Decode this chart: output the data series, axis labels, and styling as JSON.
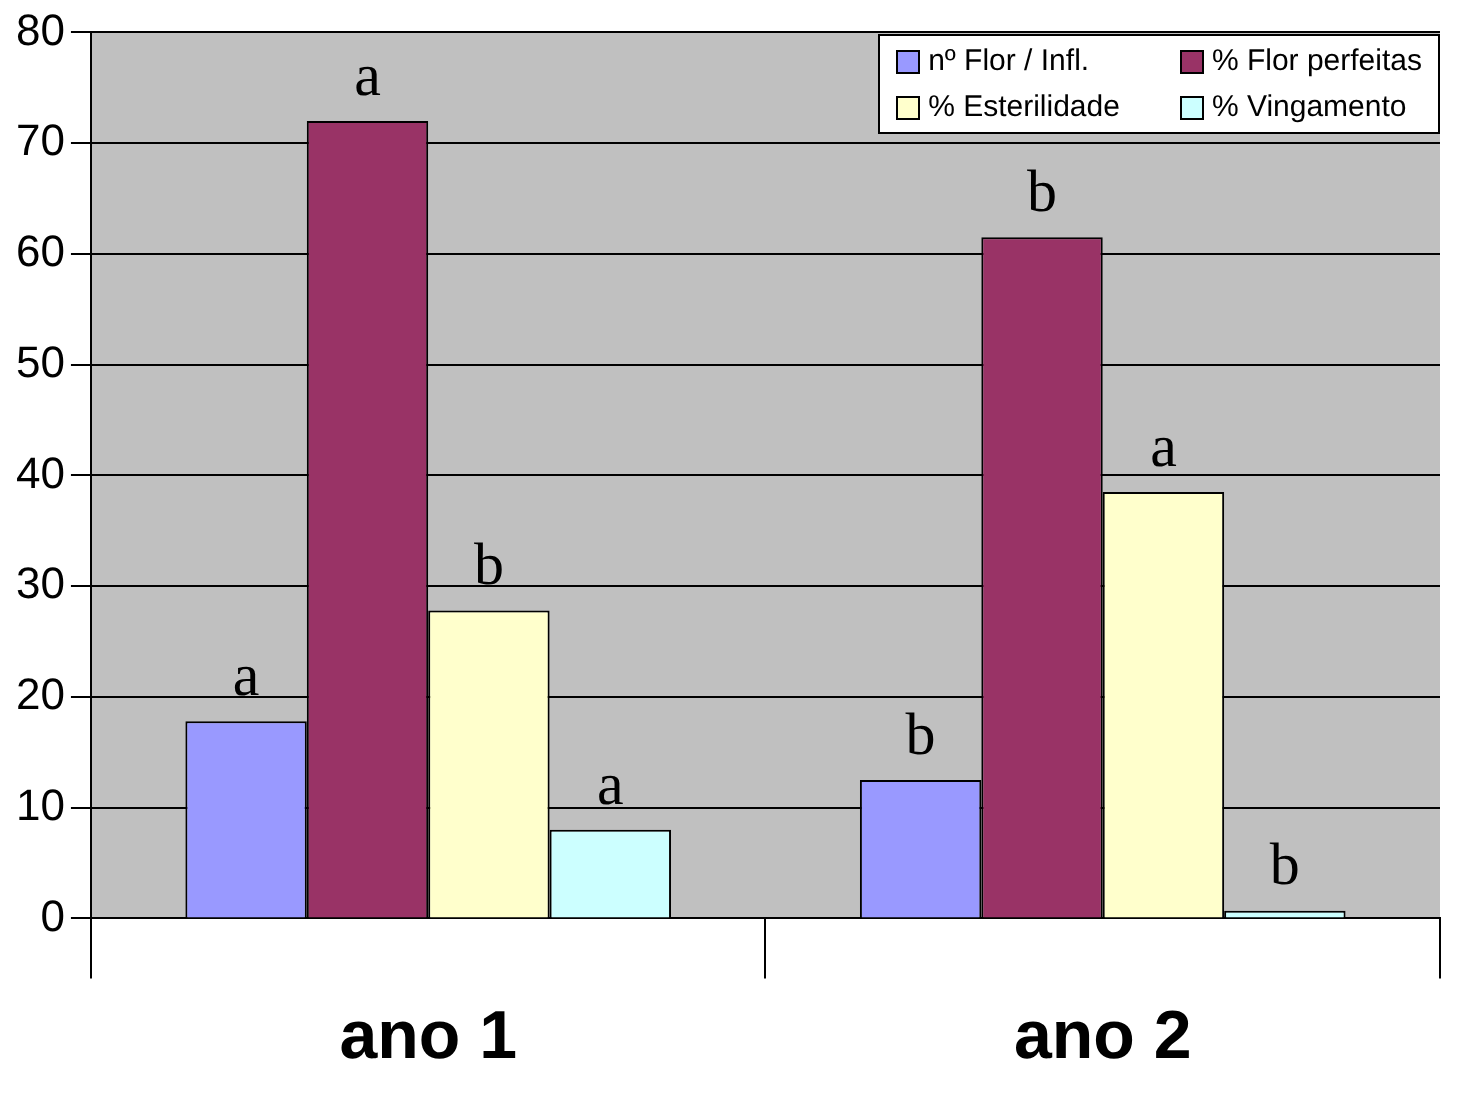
{
  "chart_data": {
    "type": "bar",
    "categories": [
      "ano 1",
      "ano 2"
    ],
    "series": [
      {
        "name": "nº Flor / Infl.",
        "color": "#9999ff",
        "values": [
          17.8,
          12.5
        ],
        "value_labels": [
          "a",
          "b"
        ]
      },
      {
        "name": "% Flor perfeitas",
        "color": "#993366",
        "values": [
          72,
          61.5
        ],
        "value_labels": [
          "a",
          "b"
        ]
      },
      {
        "name": "% Esterilidade",
        "color": "#ffffcc",
        "values": [
          27.8,
          38.5
        ],
        "value_labels": [
          "b",
          "a"
        ]
      },
      {
        "name": "% Vingamento",
        "color": "#ccffff",
        "values": [
          8,
          0.7
        ],
        "value_labels": [
          "a",
          "b"
        ]
      }
    ],
    "ylim": [
      0,
      80
    ],
    "yticks": [
      0,
      10,
      20,
      30,
      40,
      50,
      60,
      70,
      80
    ],
    "grid": "y",
    "legend": "top right"
  }
}
